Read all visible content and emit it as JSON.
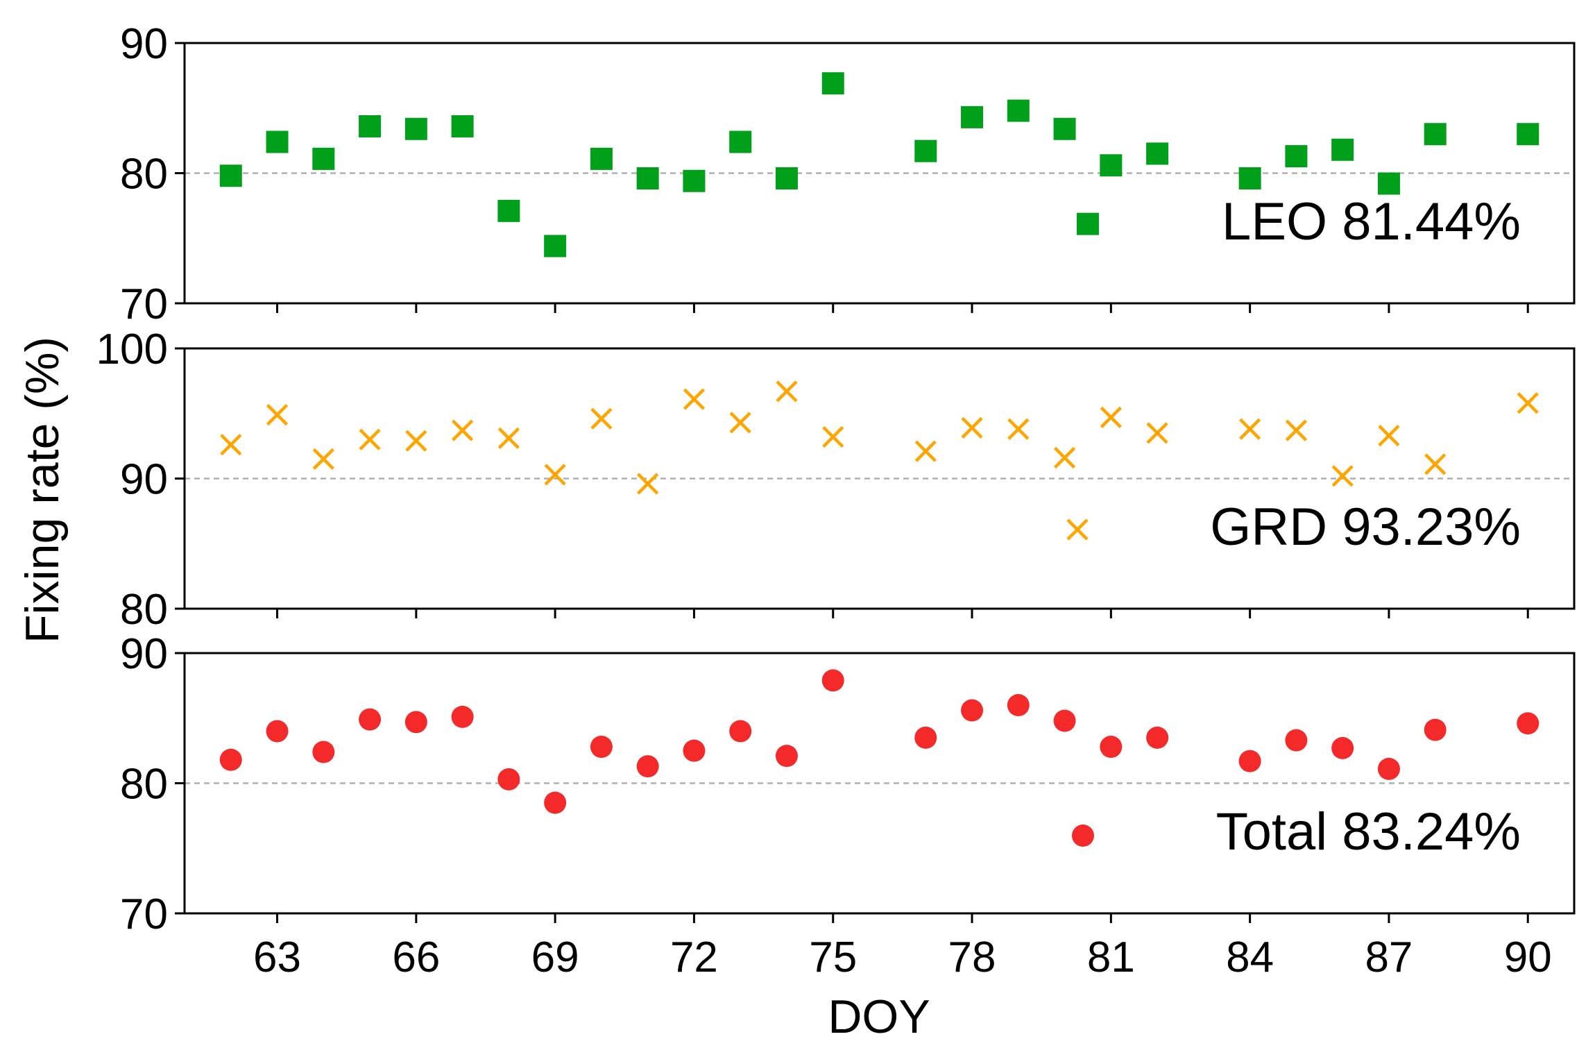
{
  "chart_data": {
    "type": "scatter",
    "xlabel": "DOY",
    "ylabel": "Fixing rate (%)",
    "xlim": [
      61,
      91
    ],
    "x_ticks": [
      63,
      66,
      69,
      72,
      75,
      78,
      81,
      84,
      87,
      90
    ],
    "panels": [
      {
        "name": "LEO",
        "legend_label": "LEO 81.44%",
        "marker": "square",
        "color": "#00a01a",
        "ylim": [
          70,
          90
        ],
        "y_ticks": [
          70,
          80,
          90
        ],
        "reference_line": 80,
        "points": [
          [
            62,
            79.8
          ],
          [
            63,
            82.4
          ],
          [
            64,
            81.1
          ],
          [
            65,
            83.6
          ],
          [
            66,
            83.4
          ],
          [
            67,
            83.6
          ],
          [
            68,
            77.1
          ],
          [
            69,
            74.4
          ],
          [
            70,
            81.1
          ],
          [
            71,
            79.6
          ],
          [
            72,
            79.4
          ],
          [
            73,
            82.4
          ],
          [
            74,
            79.6
          ],
          [
            75,
            86.9
          ],
          [
            77,
            81.7
          ],
          [
            78,
            84.3
          ],
          [
            79,
            84.8
          ],
          [
            80,
            83.4
          ],
          [
            80.5,
            76.1
          ],
          [
            81,
            80.6
          ],
          [
            82,
            81.5
          ],
          [
            84,
            79.6
          ],
          [
            85,
            81.3
          ],
          [
            86,
            81.8
          ],
          [
            87,
            79.2
          ],
          [
            88,
            83.0
          ],
          [
            90,
            83.0
          ]
        ]
      },
      {
        "name": "GRD",
        "legend_label": "GRD 93.23%",
        "marker": "x",
        "color": "#ffa500",
        "ylim": [
          80,
          100
        ],
        "y_ticks": [
          80,
          90,
          100
        ],
        "reference_line": 90,
        "points": [
          [
            62,
            92.6
          ],
          [
            63,
            94.9
          ],
          [
            64,
            91.5
          ],
          [
            65,
            93.0
          ],
          [
            66,
            92.9
          ],
          [
            67,
            93.7
          ],
          [
            68,
            93.1
          ],
          [
            69,
            90.3
          ],
          [
            70,
            94.6
          ],
          [
            71,
            89.6
          ],
          [
            72,
            96.1
          ],
          [
            73,
            94.3
          ],
          [
            74,
            96.7
          ],
          [
            75,
            93.2
          ],
          [
            77,
            92.1
          ],
          [
            78,
            93.9
          ],
          [
            79,
            93.8
          ],
          [
            80,
            91.6
          ],
          [
            81,
            94.7
          ],
          [
            82,
            93.5
          ],
          [
            84,
            93.8
          ],
          [
            85,
            93.7
          ],
          [
            86,
            90.2
          ],
          [
            87,
            93.3
          ],
          [
            88,
            91.1
          ],
          [
            90,
            95.8
          ]
        ]
      },
      {
        "name": "Total",
        "legend_label": "Total 83.24%",
        "marker": "circle",
        "color": "#f42a2a",
        "ylim": [
          70,
          90
        ],
        "y_ticks": [
          70,
          80,
          90
        ],
        "reference_line": 80,
        "points": [
          [
            62,
            81.8
          ],
          [
            63,
            84.0
          ],
          [
            64,
            82.4
          ],
          [
            65,
            84.9
          ],
          [
            66,
            84.7
          ],
          [
            67,
            85.1
          ],
          [
            68,
            80.3
          ],
          [
            69,
            78.5
          ],
          [
            70,
            82.8
          ],
          [
            71,
            81.3
          ],
          [
            72,
            82.5
          ],
          [
            73,
            84.0
          ],
          [
            74,
            82.1
          ],
          [
            75,
            87.9
          ],
          [
            77,
            83.5
          ],
          [
            78,
            85.6
          ],
          [
            79,
            86.0
          ],
          [
            80,
            84.8
          ],
          [
            81,
            82.8
          ],
          [
            82,
            83.5
          ],
          [
            84,
            81.7
          ],
          [
            85,
            83.3
          ],
          [
            86,
            82.7
          ],
          [
            87,
            81.1
          ],
          [
            88,
            84.1
          ],
          [
            90,
            84.6
          ]
        ]
      }
    ]
  }
}
